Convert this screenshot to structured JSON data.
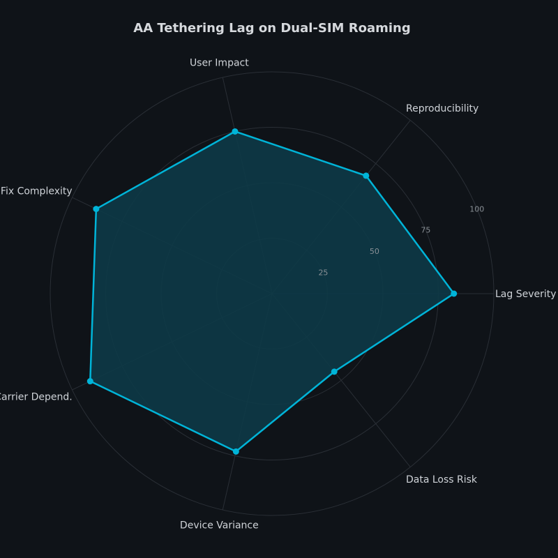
{
  "chart_data": {
    "type": "radar",
    "title": "AA Tethering Lag on Dual-SIM Roaming",
    "categories": [
      "Lag Severity",
      "Reproducibility",
      "User Impact",
      "Fix Complexity",
      "Carrier Depend.",
      "Device Variance",
      "Data Loss Risk"
    ],
    "series": [
      {
        "name": "AA Tethering Lag",
        "values": [
          82,
          68,
          75,
          88,
          91,
          73,
          45
        ]
      }
    ],
    "rlim": [
      0,
      100
    ],
    "rticks": [
      25,
      50,
      75,
      100
    ],
    "grid": true,
    "legend": false
  },
  "colors": {
    "background": "#0f1318",
    "series_line": "#00b4d8",
    "series_fill": "#0d3a47",
    "grid": "#2a2f36",
    "text": "#cfd3d8",
    "tick_text": "#8a9096"
  }
}
